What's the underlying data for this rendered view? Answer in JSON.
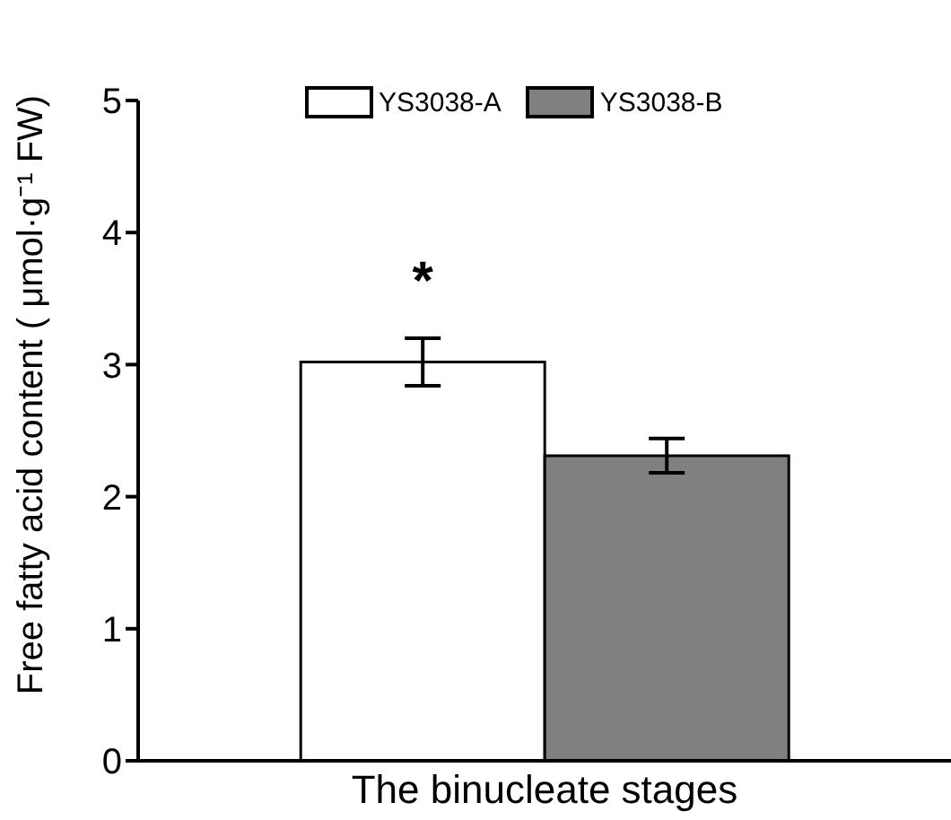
{
  "chart_data": {
    "type": "bar",
    "categories": [
      "The binucleate stages"
    ],
    "ylabel": "Free fatty acid content ( μmol·g⁻¹ FW)",
    "ylim": [
      0,
      5
    ],
    "yticks": [
      0,
      1,
      2,
      3,
      4,
      5
    ],
    "grid": false,
    "legend": "top",
    "annotations": [
      "*"
    ],
    "series": [
      {
        "name": "YS3038-A",
        "color": "#ffffff",
        "values": [
          3.02
        ],
        "errors": [
          0.18
        ]
      },
      {
        "name": "YS3038-B",
        "color": "#808080",
        "values": [
          2.31
        ],
        "errors": [
          0.13
        ]
      }
    ]
  }
}
